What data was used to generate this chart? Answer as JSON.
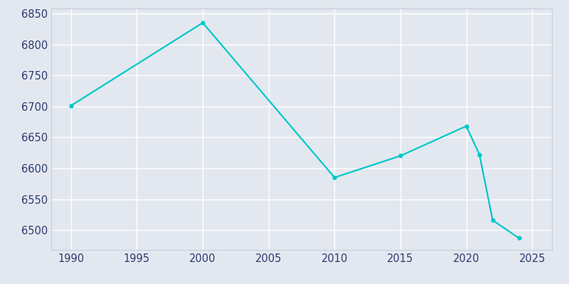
{
  "years": [
    1990,
    2000,
    2010,
    2015,
    2020,
    2021,
    2022,
    2024
  ],
  "population": [
    6701,
    6835,
    6585,
    6620,
    6668,
    6622,
    6516,
    6487
  ],
  "line_color": "#00C8C8",
  "marker": "o",
  "marker_size": 3.5,
  "bg_color": "#E3E8F0",
  "grid_color": "#FFFFFF",
  "line_width": 1.6,
  "xlim": [
    1988.5,
    2026.5
  ],
  "ylim": [
    6468,
    6858
  ],
  "xticks": [
    1990,
    1995,
    2000,
    2005,
    2010,
    2015,
    2020,
    2025
  ],
  "yticks": [
    6500,
    6550,
    6600,
    6650,
    6700,
    6750,
    6800,
    6850
  ],
  "tick_label_color": "#2E3A6E",
  "tick_fontsize": 10.5,
  "spine_color": "#C5CCDA"
}
